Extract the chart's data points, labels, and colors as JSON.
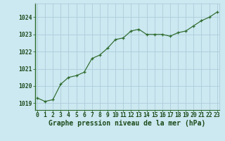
{
  "x": [
    0,
    1,
    2,
    3,
    4,
    5,
    6,
    7,
    8,
    9,
    10,
    11,
    12,
    13,
    14,
    15,
    16,
    17,
    18,
    19,
    20,
    21,
    22,
    23
  ],
  "y": [
    1019.3,
    1019.1,
    1019.2,
    1020.1,
    1020.5,
    1020.6,
    1020.8,
    1021.6,
    1021.8,
    1022.2,
    1022.7,
    1022.8,
    1023.2,
    1023.3,
    1023.0,
    1023.0,
    1023.0,
    1022.9,
    1023.1,
    1023.2,
    1023.5,
    1023.8,
    1024.0,
    1024.3
  ],
  "line_color": "#2d6a2d",
  "marker_color": "#2d6a2d",
  "bg_color": "#cce8f0",
  "grid_color": "#a8c8d8",
  "text_color": "#1a4a1a",
  "spine_color": "#2d6a2d",
  "ytick_labels": [
    "1019",
    "1020",
    "1021",
    "1022",
    "1023",
    "1024"
  ],
  "ytick_values": [
    1019,
    1020,
    1021,
    1022,
    1023,
    1024
  ],
  "ylim": [
    1018.6,
    1024.8
  ],
  "xlim": [
    -0.3,
    23.3
  ],
  "xtick_labels": [
    "0",
    "1",
    "2",
    "3",
    "4",
    "5",
    "6",
    "7",
    "8",
    "9",
    "10",
    "11",
    "12",
    "13",
    "14",
    "15",
    "16",
    "17",
    "18",
    "19",
    "20",
    "21",
    "22",
    "23"
  ],
  "xlabel": "Graphe pression niveau de la mer (hPa)",
  "tick_fontsize": 5.8,
  "label_fontsize": 7.0
}
